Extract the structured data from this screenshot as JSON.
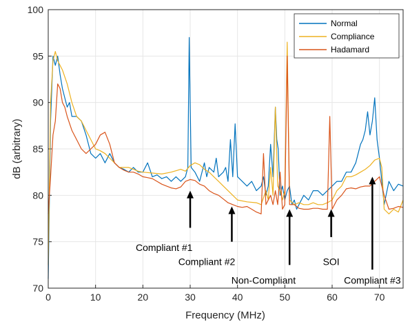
{
  "chart_data": {
    "type": "line",
    "title": "",
    "xlabel": "Frequency (MHz)",
    "ylabel": "dB (arbitrary)",
    "xlim": [
      0,
      75
    ],
    "ylim": [
      70,
      100
    ],
    "xticks": [
      "0",
      "10",
      "20",
      "30",
      "40",
      "50",
      "60",
      "70"
    ],
    "yticks": [
      "70",
      "75",
      "80",
      "85",
      "90",
      "95",
      "100"
    ],
    "grid": true,
    "legend_position": "top-right",
    "series": [
      {
        "name": "Normal",
        "color": "#0072BD",
        "points": [
          [
            0,
            71
          ],
          [
            0.5,
            88
          ],
          [
            1,
            95
          ],
          [
            1.5,
            94
          ],
          [
            2,
            95
          ],
          [
            2.5,
            93
          ],
          [
            3,
            91.5
          ],
          [
            3.5,
            90.5
          ],
          [
            4,
            89.5
          ],
          [
            4.5,
            90
          ],
          [
            5,
            88.5
          ],
          [
            6,
            88.5
          ],
          [
            7,
            88
          ],
          [
            8,
            86.5
          ],
          [
            9,
            84.5
          ],
          [
            10,
            84
          ],
          [
            11,
            84.5
          ],
          [
            12,
            83.5
          ],
          [
            13,
            84.5
          ],
          [
            14,
            83.5
          ],
          [
            15,
            83
          ],
          [
            16,
            82.8
          ],
          [
            17,
            82.5
          ],
          [
            18,
            83
          ],
          [
            19,
            82.5
          ],
          [
            20,
            82.5
          ],
          [
            21,
            83.5
          ],
          [
            22,
            82
          ],
          [
            23,
            82.2
          ],
          [
            24,
            81.8
          ],
          [
            25,
            82
          ],
          [
            26,
            81.5
          ],
          [
            27,
            82
          ],
          [
            28,
            81.5
          ],
          [
            29,
            82
          ],
          [
            29.5,
            83
          ],
          [
            29.8,
            97
          ],
          [
            30.2,
            83
          ],
          [
            31,
            82.5
          ],
          [
            32,
            81.5
          ],
          [
            33,
            83.5
          ],
          [
            33.5,
            82
          ],
          [
            34,
            83
          ],
          [
            35,
            82.5
          ],
          [
            35.5,
            84
          ],
          [
            36,
            82
          ],
          [
            37,
            82.5
          ],
          [
            37.5,
            83
          ],
          [
            38,
            81.5
          ],
          [
            38.5,
            86
          ],
          [
            39,
            82
          ],
          [
            39.5,
            87.7
          ],
          [
            40,
            82
          ],
          [
            41,
            81.5
          ],
          [
            42,
            81
          ],
          [
            43,
            81.5
          ],
          [
            44,
            80.5
          ],
          [
            45,
            81
          ],
          [
            45.5,
            82
          ],
          [
            46,
            80
          ],
          [
            46.5,
            81
          ],
          [
            47,
            85.5
          ],
          [
            47.5,
            82
          ],
          [
            48,
            89.5
          ],
          [
            48.3,
            86
          ],
          [
            48.6,
            85
          ],
          [
            49,
            80
          ],
          [
            49.5,
            81
          ],
          [
            50,
            79.5
          ],
          [
            50.5,
            80.5
          ],
          [
            51,
            81
          ],
          [
            51.5,
            79
          ],
          [
            52,
            79.5
          ],
          [
            52.5,
            78.5
          ],
          [
            53,
            79
          ],
          [
            54,
            80
          ],
          [
            55,
            79.5
          ],
          [
            56,
            80.5
          ],
          [
            57,
            80.5
          ],
          [
            58,
            80
          ],
          [
            59,
            80.5
          ],
          [
            60,
            81
          ],
          [
            61,
            81.5
          ],
          [
            62,
            81.5
          ],
          [
            63,
            82.5
          ],
          [
            64,
            82.5
          ],
          [
            65,
            83.5
          ],
          [
            66,
            85.5
          ],
          [
            66.5,
            86
          ],
          [
            67,
            87
          ],
          [
            67.5,
            89
          ],
          [
            68,
            86.5
          ],
          [
            68.5,
            88
          ],
          [
            69,
            90.5
          ],
          [
            69.5,
            86
          ],
          [
            70,
            84
          ],
          [
            71,
            79
          ],
          [
            72,
            81.5
          ],
          [
            73,
            80.5
          ],
          [
            74,
            81.2
          ],
          [
            75,
            81
          ]
        ]
      },
      {
        "name": "Compliance",
        "color": "#EDB120",
        "points": [
          [
            0,
            72.5
          ],
          [
            0.5,
            90
          ],
          [
            1,
            94.5
          ],
          [
            1.5,
            95.5
          ],
          [
            2,
            94.5
          ],
          [
            3,
            93.5
          ],
          [
            4,
            92
          ],
          [
            5,
            90
          ],
          [
            6,
            88.5
          ],
          [
            7,
            88
          ],
          [
            8,
            87
          ],
          [
            9,
            86
          ],
          [
            10,
            85
          ],
          [
            11,
            84.8
          ],
          [
            12,
            84.5
          ],
          [
            13,
            84
          ],
          [
            14,
            83.5
          ],
          [
            15,
            83
          ],
          [
            16,
            83
          ],
          [
            17,
            83
          ],
          [
            18,
            82.8
          ],
          [
            19,
            82.6
          ],
          [
            20,
            82.5
          ],
          [
            22,
            82.4
          ],
          [
            24,
            82.3
          ],
          [
            26,
            82.5
          ],
          [
            28,
            82.8
          ],
          [
            29,
            82.6
          ],
          [
            30,
            83.2
          ],
          [
            31,
            83.5
          ],
          [
            32,
            83.3
          ],
          [
            33,
            82.8
          ],
          [
            34,
            82.5
          ],
          [
            35,
            82
          ],
          [
            36,
            81.5
          ],
          [
            37,
            81
          ],
          [
            38,
            80.5
          ],
          [
            39,
            80
          ],
          [
            40,
            79.5
          ],
          [
            42,
            79.3
          ],
          [
            44,
            79.2
          ],
          [
            45,
            79
          ],
          [
            46,
            80.5
          ],
          [
            46.5,
            79.5
          ],
          [
            47,
            83
          ],
          [
            47.5,
            80
          ],
          [
            48,
            89.5
          ],
          [
            48.5,
            81
          ],
          [
            49,
            80.5
          ],
          [
            49.5,
            79.5
          ],
          [
            50,
            80.5
          ],
          [
            50.5,
            96.5
          ],
          [
            51,
            79.5
          ],
          [
            52,
            79
          ],
          [
            53,
            79.2
          ],
          [
            54,
            79
          ],
          [
            55,
            79
          ],
          [
            56,
            79.2
          ],
          [
            57,
            79
          ],
          [
            58,
            79
          ],
          [
            59,
            79.2
          ],
          [
            60,
            79.5
          ],
          [
            61,
            80.5
          ],
          [
            62,
            81
          ],
          [
            63,
            82
          ],
          [
            64,
            82
          ],
          [
            65,
            82.2
          ],
          [
            66,
            82.5
          ],
          [
            67,
            82.8
          ],
          [
            68,
            83.2
          ],
          [
            69,
            83.8
          ],
          [
            70,
            84
          ],
          [
            70.5,
            83
          ],
          [
            71,
            78.5
          ],
          [
            72,
            78
          ],
          [
            73,
            78.5
          ],
          [
            74,
            78.2
          ],
          [
            75,
            79.5
          ]
        ]
      },
      {
        "name": "Hadamard",
        "color": "#D95319",
        "points": [
          [
            0,
            78
          ],
          [
            0.5,
            82
          ],
          [
            1,
            86.5
          ],
          [
            1.5,
            88
          ],
          [
            2,
            92
          ],
          [
            2.5,
            91.5
          ],
          [
            3,
            90
          ],
          [
            3.5,
            89.5
          ],
          [
            4,
            88.5
          ],
          [
            5,
            87
          ],
          [
            6,
            86
          ],
          [
            7,
            85
          ],
          [
            8,
            84.5
          ],
          [
            9,
            85
          ],
          [
            10,
            85.5
          ],
          [
            11,
            86.5
          ],
          [
            12,
            86.8
          ],
          [
            13,
            85.5
          ],
          [
            14,
            83.5
          ],
          [
            15,
            83
          ],
          [
            16,
            82.7
          ],
          [
            17,
            82.5
          ],
          [
            18,
            82.5
          ],
          [
            19,
            82.3
          ],
          [
            20,
            82
          ],
          [
            21,
            81.9
          ],
          [
            22,
            81.8
          ],
          [
            23,
            81.5
          ],
          [
            24,
            81.2
          ],
          [
            25,
            81
          ],
          [
            26,
            80.8
          ],
          [
            27,
            80.7
          ],
          [
            28,
            80.9
          ],
          [
            29,
            81.5
          ],
          [
            30,
            81.7
          ],
          [
            31,
            81.6
          ],
          [
            32,
            81.2
          ],
          [
            33,
            81
          ],
          [
            34,
            80.5
          ],
          [
            35,
            80.2
          ],
          [
            36,
            80
          ],
          [
            37,
            79.6
          ],
          [
            38,
            79.2
          ],
          [
            39,
            79
          ],
          [
            40,
            78.8
          ],
          [
            41,
            78.7
          ],
          [
            42,
            78.8
          ],
          [
            43,
            78.5
          ],
          [
            44,
            78.2
          ],
          [
            45,
            78
          ],
          [
            45.5,
            84.5
          ],
          [
            46,
            79
          ],
          [
            47,
            80
          ],
          [
            47.5,
            79
          ],
          [
            48,
            80.5
          ],
          [
            48.5,
            79
          ],
          [
            49,
            82.5
          ],
          [
            49.5,
            78.5
          ],
          [
            50,
            79
          ],
          [
            50.5,
            95
          ],
          [
            51,
            79
          ],
          [
            52,
            79
          ],
          [
            53,
            78.6
          ],
          [
            54,
            78.5
          ],
          [
            55,
            78.5
          ],
          [
            56,
            78.6
          ],
          [
            57,
            78.6
          ],
          [
            58,
            78.5
          ],
          [
            59,
            78.5
          ],
          [
            59.5,
            88.5
          ],
          [
            60,
            78.5
          ],
          [
            61,
            79.5
          ],
          [
            62,
            80
          ],
          [
            63,
            80.7
          ],
          [
            64,
            80.8
          ],
          [
            65,
            80.7
          ],
          [
            66,
            80.9
          ],
          [
            67,
            81
          ],
          [
            68,
            81
          ],
          [
            69,
            81.5
          ],
          [
            70,
            82
          ],
          [
            71,
            80
          ],
          [
            72,
            78.5
          ],
          [
            73,
            78.6
          ],
          [
            74,
            78.8
          ],
          [
            75,
            78.7
          ]
        ]
      }
    ],
    "annotations": [
      {
        "label": "Compliant #1",
        "arrow_x": 30,
        "arrow_y_top": 80.5,
        "arrow_y_bottom": 76.5,
        "text_x": 24.5,
        "text_y": 74
      },
      {
        "label": "Compliant #2",
        "arrow_x": 38.8,
        "arrow_y_top": 78.8,
        "arrow_y_bottom": 75,
        "text_x": 33.5,
        "text_y": 72.5
      },
      {
        "label": "Non-Compliant",
        "arrow_x": 51,
        "arrow_y_top": 78.5,
        "arrow_y_bottom": 72.5,
        "text_x": 45.5,
        "text_y": 70.5
      },
      {
        "label": "SOI",
        "arrow_x": 59.8,
        "arrow_y_top": 78.5,
        "arrow_y_bottom": 75.5,
        "text_x": 59.8,
        "text_y": 72.5
      },
      {
        "label": "Compliant #3",
        "arrow_x": 68.5,
        "arrow_y_top": 82,
        "arrow_y_bottom": 72,
        "text_x": 68.5,
        "text_y": 70.5
      }
    ]
  }
}
